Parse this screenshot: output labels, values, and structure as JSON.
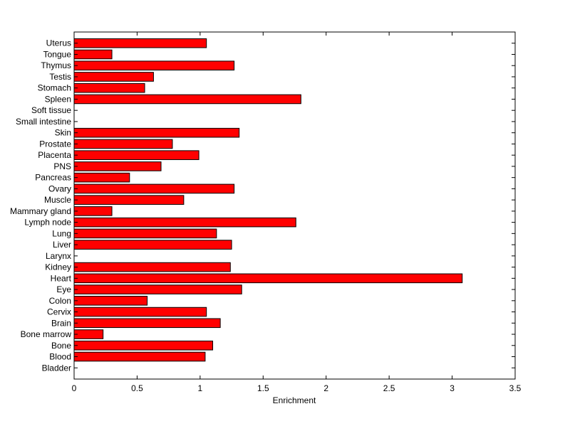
{
  "chart_data": {
    "type": "bar",
    "orientation": "horizontal",
    "title": "",
    "xlabel": "Enrichment",
    "ylabel": "",
    "xlim": [
      0,
      3.5
    ],
    "xticks": [
      "0",
      "0.5",
      "1",
      "1.5",
      "2",
      "2.5",
      "3",
      "3.5"
    ],
    "grid": false,
    "legend": "none",
    "bar_color": "#ff0000",
    "edge_color": "#000000",
    "categories": [
      "Bladder",
      "Blood",
      "Bone",
      "Bone marrow",
      "Brain",
      "Cervix",
      "Colon",
      "Eye",
      "Heart",
      "Kidney",
      "Larynx",
      "Liver",
      "Lung",
      "Lymph node",
      "Mammary gland",
      "Muscle",
      "Ovary",
      "Pancreas",
      "PNS",
      "Placenta",
      "Prostate",
      "Skin",
      "Small intestine",
      "Soft tissue",
      "Spleen",
      "Stomach",
      "Testis",
      "Thymus",
      "Tongue",
      "Uterus"
    ],
    "values": [
      0,
      1.04,
      1.1,
      0.23,
      1.16,
      1.05,
      0.58,
      1.33,
      3.08,
      1.24,
      0,
      1.25,
      1.13,
      1.76,
      0.3,
      0.87,
      1.27,
      0.44,
      0.69,
      0.99,
      0.78,
      1.31,
      0,
      0,
      1.8,
      0.56,
      0.63,
      1.27,
      0.3,
      1.05
    ]
  }
}
